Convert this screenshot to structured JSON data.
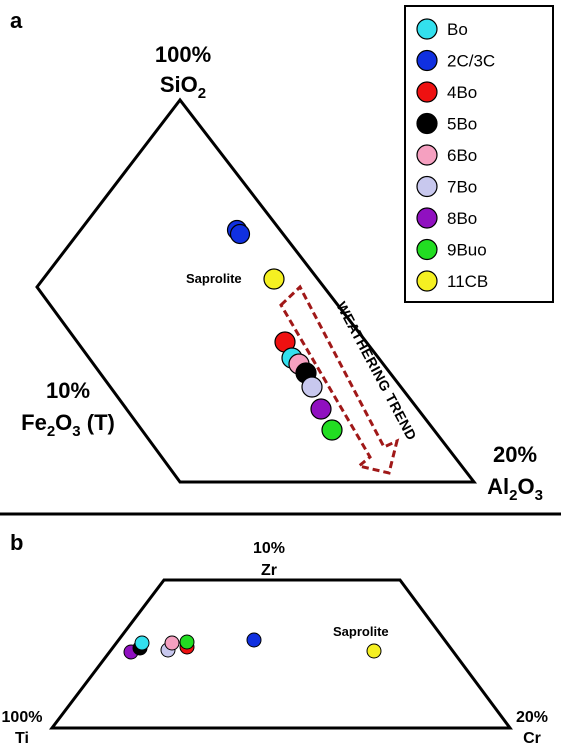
{
  "chart_data": [
    {
      "panel": "a",
      "type": "scatter",
      "vertices": {
        "top": {
          "pct": "100%",
          "name": "SiO",
          "sub": "2"
        },
        "left": {
          "pct": "10%",
          "name": "Fe",
          "sub": "2",
          "tail": "O",
          "sub2": "3",
          "tail2": " (T)"
        },
        "right": {
          "pct": "20%",
          "name": "Al",
          "sub": "2",
          "tail": "O",
          "sub2": "3"
        }
      },
      "annotation": "Saprolite",
      "trend_label": "WEATHERING TREND"
    },
    {
      "panel": "b",
      "type": "scatter",
      "vertices": {
        "top": {
          "pct": "10%",
          "name": "Zr"
        },
        "left": {
          "pct": "100%",
          "name": "Ti"
        },
        "right": {
          "pct": "20%",
          "name": "Cr"
        }
      },
      "annotation": "Saprolite"
    }
  ],
  "legend": [
    {
      "label": "Bo",
      "color": "#33e0ee"
    },
    {
      "label": "2C/3C",
      "color": "#1030e0"
    },
    {
      "label": "4Bo",
      "color": "#ee1111"
    },
    {
      "label": "5Bo",
      "color": "#000000"
    },
    {
      "label": "6Bo",
      "color": "#f5a0c0"
    },
    {
      "label": "7Bo",
      "color": "#c8c8ee"
    },
    {
      "label": "8Bo",
      "color": "#9010c0"
    },
    {
      "label": "9Buo",
      "color": "#22dd22"
    },
    {
      "label": "11CB",
      "color": "#f5f022"
    }
  ]
}
